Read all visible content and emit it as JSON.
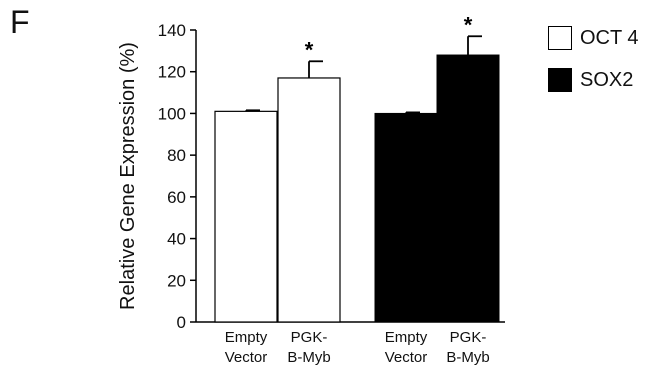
{
  "panel_label": "F",
  "chart_data": {
    "type": "bar",
    "ylabel": "Relative Gene Expression (%)",
    "ylim": [
      0,
      140
    ],
    "yticks": [
      0,
      20,
      40,
      60,
      80,
      100,
      120,
      140
    ],
    "grid": false,
    "legend_placement": "top-right",
    "groups": [
      {
        "series": "OCT 4",
        "categories": [
          "Empty\nVector",
          "PGK-\nB-Myb"
        ],
        "values": [
          101,
          117
        ],
        "errors": [
          0.5,
          8
        ],
        "significance": [
          "",
          "*"
        ]
      },
      {
        "series": "SOX2",
        "categories": [
          "Empty\nVector",
          "PGK-\nB-Myb"
        ],
        "values": [
          100,
          128
        ],
        "errors": [
          0.5,
          9
        ],
        "significance": [
          "",
          "*"
        ]
      }
    ],
    "series": [
      {
        "name": "OCT 4",
        "color": "#ffffff"
      },
      {
        "name": "SOX2",
        "color": "#000000"
      }
    ]
  }
}
